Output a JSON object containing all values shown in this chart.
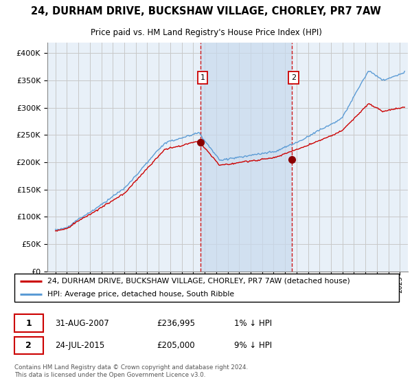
{
  "title": "24, DURHAM DRIVE, BUCKSHAW VILLAGE, CHORLEY, PR7 7AW",
  "subtitle": "Price paid vs. HM Land Registry's House Price Index (HPI)",
  "ylim": [
    0,
    420000
  ],
  "yticks": [
    0,
    50000,
    100000,
    150000,
    200000,
    250000,
    300000,
    350000,
    400000
  ],
  "sale1": {
    "date_label": "31-AUG-2007",
    "price": 236995,
    "pct": "1%",
    "label": "1"
  },
  "sale2": {
    "date_label": "24-JUL-2015",
    "price": 205000,
    "pct": "9%",
    "label": "2"
  },
  "hpi_line_color": "#5b9bd5",
  "price_line_color": "#cc0000",
  "sale_marker_color": "#8b0000",
  "vline_color": "#cc0000",
  "shade_color": "#dce9f5",
  "grid_color": "#c8c8c8",
  "background_color": "#e8f0f8",
  "legend_entry1": "24, DURHAM DRIVE, BUCKSHAW VILLAGE, CHORLEY, PR7 7AW (detached house)",
  "legend_entry2": "HPI: Average price, detached house, South Ribble",
  "footnote": "Contains HM Land Registry data © Crown copyright and database right 2024.\nThis data is licensed under the Open Government Licence v3.0.",
  "sale1_x": 2007.667,
  "sale2_x": 2015.583,
  "xlim_left": 1994.3,
  "xlim_right": 2025.7
}
